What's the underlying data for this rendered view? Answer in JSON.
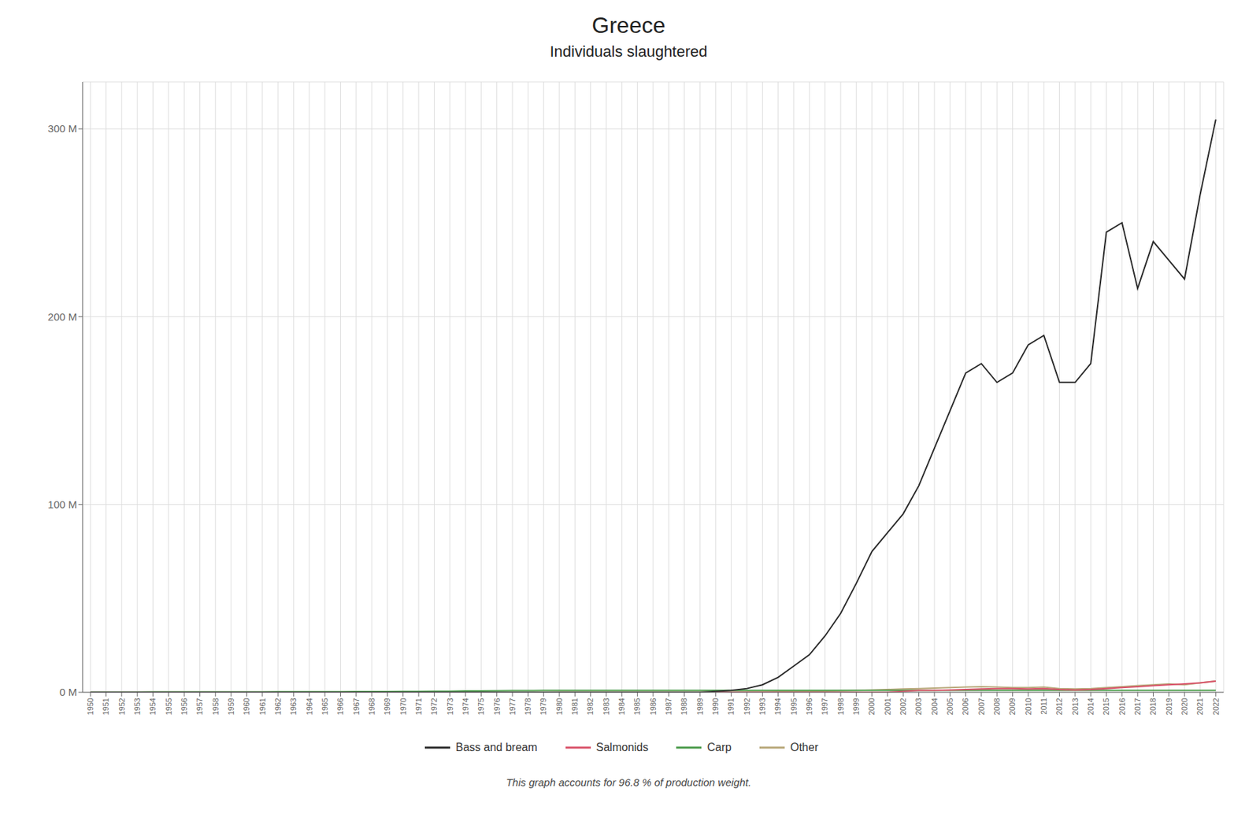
{
  "chart_data": {
    "type": "line",
    "title": "Greece",
    "subtitle": "Individuals slaughtered",
    "annotations": [
      "This graph accounts for 96.8 % of production weight."
    ],
    "x": [
      1950,
      1951,
      1952,
      1953,
      1954,
      1955,
      1956,
      1957,
      1958,
      1959,
      1960,
      1961,
      1962,
      1963,
      1964,
      1965,
      1966,
      1967,
      1968,
      1969,
      1970,
      1971,
      1972,
      1973,
      1974,
      1975,
      1976,
      1977,
      1978,
      1979,
      1980,
      1981,
      1982,
      1983,
      1984,
      1985,
      1986,
      1987,
      1988,
      1989,
      1990,
      1991,
      1992,
      1993,
      1994,
      1995,
      1996,
      1997,
      1998,
      1999,
      2000,
      2001,
      2002,
      2003,
      2004,
      2005,
      2006,
      2007,
      2008,
      2009,
      2010,
      2011,
      2012,
      2013,
      2014,
      2015,
      2016,
      2017,
      2018,
      2019,
      2020,
      2021,
      2022
    ],
    "series": [
      {
        "name": "Bass and bream",
        "color": "#2b2b2b",
        "values": [
          0,
          0,
          0,
          0,
          0,
          0,
          0,
          0,
          0,
          0,
          0,
          0,
          0,
          0,
          0,
          0,
          0,
          0,
          0,
          0,
          0,
          0,
          0,
          0,
          0,
          0,
          0,
          0,
          0,
          0,
          0,
          0,
          0,
          0,
          0,
          0,
          0,
          0,
          0,
          0,
          500000,
          1000000,
          2000000,
          4000000,
          8000000,
          14000000,
          20000000,
          30000000,
          42000000,
          58000000,
          75000000,
          85000000,
          95000000,
          110000000,
          130000000,
          150000000,
          170000000,
          175000000,
          165000000,
          170000000,
          185000000,
          190000000,
          165000000,
          165000000,
          175000000,
          245000000,
          250000000,
          215000000,
          240000000,
          230000000,
          220000000,
          265000000,
          305000000
        ]
      },
      {
        "name": "Salmonids",
        "color": "#d9536a",
        "values": [
          0,
          0,
          0,
          0,
          0,
          0,
          0,
          0,
          0,
          0,
          0,
          0,
          0,
          0,
          0,
          0,
          0,
          0,
          0,
          0,
          0,
          0,
          0,
          0,
          0,
          0,
          0,
          0,
          0,
          0,
          0,
          0,
          0,
          0,
          0,
          0,
          0,
          0,
          0,
          0,
          0,
          0,
          0,
          0,
          0,
          0,
          0,
          0,
          0,
          0,
          0,
          0,
          500000,
          1000000,
          1000000,
          1200000,
          1500000,
          1800000,
          2000000,
          2000000,
          1800000,
          2000000,
          1500000,
          1200000,
          1500000,
          2000000,
          2500000,
          3000000,
          3500000,
          4000000,
          4500000,
          5000000,
          6000000
        ]
      },
      {
        "name": "Carp",
        "color": "#4a9a4a",
        "values": [
          100000,
          100000,
          100000,
          100000,
          150000,
          150000,
          150000,
          200000,
          200000,
          200000,
          200000,
          200000,
          250000,
          250000,
          300000,
          300000,
          300000,
          400000,
          400000,
          400000,
          500000,
          500000,
          600000,
          600000,
          700000,
          700000,
          800000,
          900000,
          900000,
          1000000,
          1000000,
          1000000,
          1000000,
          1000000,
          1000000,
          1000000,
          1000000,
          1000000,
          1000000,
          1000000,
          1000000,
          1000000,
          1000000,
          1000000,
          1000000,
          1000000,
          1000000,
          1000000,
          1000000,
          1000000,
          1000000,
          1000000,
          1000000,
          1000000,
          1000000,
          1000000,
          1000000,
          1000000,
          1000000,
          1000000,
          1000000,
          1000000,
          1000000,
          1000000,
          1000000,
          1000000,
          1000000,
          1000000,
          1000000,
          1000000,
          1000000,
          1000000,
          1000000
        ]
      },
      {
        "name": "Other",
        "color": "#b8a87a",
        "values": [
          50000,
          50000,
          50000,
          50000,
          50000,
          50000,
          50000,
          50000,
          50000,
          50000,
          50000,
          50000,
          50000,
          50000,
          50000,
          50000,
          50000,
          50000,
          50000,
          50000,
          100000,
          100000,
          100000,
          100000,
          100000,
          100000,
          100000,
          100000,
          100000,
          100000,
          200000,
          200000,
          200000,
          200000,
          200000,
          200000,
          200000,
          200000,
          200000,
          200000,
          200000,
          200000,
          300000,
          300000,
          400000,
          500000,
          600000,
          700000,
          800000,
          1000000,
          1200000,
          1500000,
          1800000,
          2000000,
          2200000,
          2500000,
          2800000,
          3000000,
          2800000,
          2500000,
          2500000,
          2800000,
          2000000,
          1800000,
          2000000,
          2500000,
          3000000,
          3500000,
          4000000,
          4500000,
          4000000,
          5000000,
          6000000
        ]
      }
    ],
    "xlim": [
      1949.5,
      2022.5
    ],
    "xticks": [
      1950,
      1951,
      1952,
      1953,
      1954,
      1955,
      1956,
      1957,
      1958,
      1959,
      1960,
      1961,
      1962,
      1963,
      1964,
      1965,
      1966,
      1967,
      1968,
      1969,
      1970,
      1971,
      1972,
      1973,
      1974,
      1975,
      1976,
      1977,
      1978,
      1979,
      1980,
      1981,
      1982,
      1983,
      1984,
      1985,
      1986,
      1987,
      1988,
      1989,
      1990,
      1991,
      1992,
      1993,
      1994,
      1995,
      1996,
      1997,
      1998,
      1999,
      2000,
      2001,
      2002,
      2003,
      2004,
      2005,
      2006,
      2007,
      2008,
      2009,
      2010,
      2011,
      2012,
      2013,
      2014,
      2015,
      2016,
      2017,
      2018,
      2019,
      2020,
      2021,
      2022
    ],
    "ylim": [
      0,
      325000000
    ],
    "yticks": [
      {
        "value": 0,
        "label": "0 M"
      },
      {
        "value": 100000000,
        "label": "100 M"
      },
      {
        "value": 200000000,
        "label": "200 M"
      },
      {
        "value": 300000000,
        "label": "300 M"
      }
    ],
    "grid": true,
    "legend": "bottom"
  }
}
